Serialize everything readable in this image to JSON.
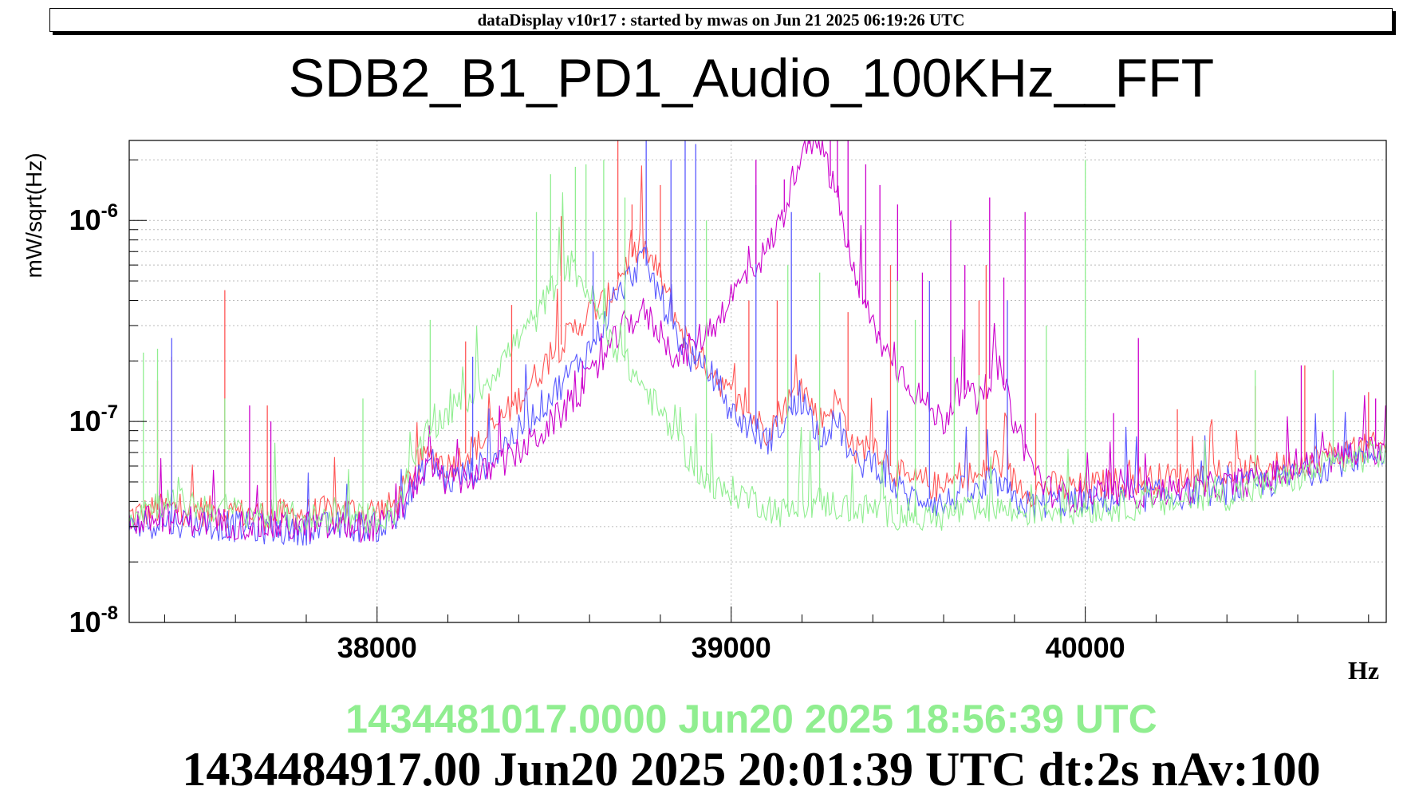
{
  "header": {
    "banner": "dataDisplay v10r17 : started by mwas on Jun 21 2025 06:19:26 UTC"
  },
  "footer": {
    "timestamp_reference": "1434481017.0000 Jun20 2025 18:56:39 UTC",
    "timestamp_current": "1434484917.00 Jun20 2025 20:01:39 UTC dt:2s nAv:100"
  },
  "colors": {
    "red": "#ff5555",
    "blue": "#5a5aff",
    "magenta": "#cc00cc",
    "green": "#90ee90"
  },
  "chart_data": {
    "type": "line",
    "title": "SDB2_B1_PD1_Audio_100KHz__FFT",
    "xlabel": "Hz",
    "ylabel": "mW/sqrt(Hz)",
    "xscale": "linear",
    "yscale": "log",
    "xlim": [
      37300,
      40850
    ],
    "ylim": [
      1e-08,
      2.5e-06
    ],
    "x_ticks": [
      38000,
      39000,
      40000
    ],
    "y_ticks": [
      {
        "value": 1e-06,
        "base": "10",
        "exp": "-6"
      },
      {
        "value": 1e-07,
        "base": "10",
        "exp": "-7"
      },
      {
        "value": 1e-08,
        "base": "10",
        "exp": "-8"
      }
    ],
    "grid": true,
    "series": [
      {
        "color": "#ff5555",
        "x": [
          37300,
          37400,
          37500,
          37600,
          37700,
          37800,
          37900,
          38000,
          38050,
          38100,
          38150,
          38200,
          38300,
          38400,
          38500,
          38600,
          38650,
          38700,
          38750,
          38800,
          38850,
          38900,
          38950,
          39000,
          39050,
          39100,
          39150,
          39200,
          39250,
          39300,
          39350,
          39400,
          39450,
          39500,
          39550,
          39600,
          39650,
          39700,
          39750,
          39800,
          39850,
          39900,
          39950,
          40000,
          40100,
          40200,
          40300,
          40400,
          40500,
          40600,
          40700,
          40850
        ],
        "y": [
          3.4e-08,
          3.7e-08,
          3.6e-08,
          3.5e-08,
          3.4e-08,
          3.5e-08,
          3.6e-08,
          3.6e-08,
          3.8e-08,
          5.5e-08,
          7e-08,
          6e-08,
          8e-08,
          1.3e-07,
          2.2e-07,
          3.5e-07,
          4e-07,
          6e-07,
          7.5e-07,
          5.2e-07,
          3.1e-07,
          2.1e-07,
          1.8e-07,
          1.3e-07,
          1.1e-07,
          9e-08,
          1.2e-07,
          1.5e-07,
          1e-07,
          1.3e-07,
          7e-08,
          8e-08,
          6e-08,
          5e-08,
          5e-08,
          4.5e-08,
          5.5e-08,
          5.2e-08,
          6.5e-08,
          5e-08,
          4.5e-08,
          4.8e-08,
          4.6e-08,
          4.7e-08,
          5e-08,
          5.2e-08,
          5.3e-08,
          5.5e-08,
          5.8e-08,
          6.2e-08,
          6.8e-08,
          7.6e-08
        ]
      },
      {
        "color": "#5a5aff",
        "x": [
          37300,
          37400,
          37500,
          37600,
          37700,
          37800,
          37900,
          38000,
          38050,
          38100,
          38150,
          38200,
          38300,
          38400,
          38500,
          38600,
          38650,
          38700,
          38750,
          38800,
          38850,
          38900,
          38950,
          39000,
          39050,
          39100,
          39150,
          39200,
          39250,
          39300,
          39350,
          39400,
          39450,
          39500,
          39550,
          39600,
          39650,
          39700,
          39750,
          39800,
          39850,
          39900,
          39950,
          40000,
          40100,
          40200,
          40300,
          40400,
          40500,
          40600,
          40700,
          40850
        ],
        "y": [
          3e-08,
          3.2e-08,
          3.1e-08,
          3e-08,
          2.9e-08,
          2.9e-08,
          3e-08,
          3e-08,
          3.2e-08,
          4.5e-08,
          6.5e-08,
          5e-08,
          6e-08,
          9e-08,
          1.4e-07,
          2.3e-07,
          3.3e-07,
          4.8e-07,
          6.5e-07,
          4.2e-07,
          2.6e-07,
          1.9e-07,
          1.7e-07,
          1.1e-07,
          9.5e-08,
          8e-08,
          1e-07,
          1.3e-07,
          8.5e-08,
          1e-07,
          6e-08,
          6.5e-08,
          5e-08,
          4.2e-08,
          4.2e-08,
          3.8e-08,
          4.5e-08,
          4.3e-08,
          5e-08,
          4e-08,
          3.8e-08,
          4e-08,
          3.9e-08,
          4e-08,
          4.1e-08,
          4.3e-08,
          4.4e-08,
          4.6e-08,
          4.9e-08,
          5.4e-08,
          6.2e-08,
          7.2e-08
        ]
      },
      {
        "color": "#cc00cc",
        "x": [
          37300,
          37400,
          37500,
          37600,
          37700,
          37800,
          37900,
          38000,
          38050,
          38100,
          38150,
          38200,
          38300,
          38400,
          38500,
          38600,
          38650,
          38700,
          38750,
          38800,
          38850,
          38900,
          38950,
          39000,
          39050,
          39100,
          39150,
          39200,
          39250,
          39300,
          39350,
          39400,
          39450,
          39500,
          39550,
          39600,
          39650,
          39700,
          39750,
          39800,
          39850,
          39900,
          39950,
          40000,
          40100,
          40200,
          40300,
          40400,
          40500,
          40600,
          40700,
          40850
        ],
        "y": [
          3.1e-08,
          3.3e-08,
          3.2e-08,
          3.1e-08,
          3e-08,
          3e-08,
          3e-08,
          3e-08,
          3.2e-08,
          4.8e-08,
          6e-08,
          5e-08,
          5.5e-08,
          7e-08,
          1e-07,
          1.6e-07,
          2.2e-07,
          3e-07,
          3.5e-07,
          2.8e-07,
          2e-07,
          2.5e-07,
          3e-07,
          4.2e-07,
          5.5e-07,
          7e-07,
          1.1e-06,
          2.4e-06,
          2.4e-06,
          1.3e-06,
          5e-07,
          3e-07,
          2e-07,
          1.6e-07,
          1.2e-07,
          1e-07,
          1.5e-07,
          1.2e-07,
          2e-07,
          1e-07,
          6e-08,
          4.5e-08,
          4.2e-08,
          4.3e-08,
          4.3e-08,
          4.5e-08,
          4.6e-08,
          4.8e-08,
          5.2e-08,
          5.8e-08,
          6.6e-08,
          7.5e-08
        ]
      },
      {
        "color": "#90ee90",
        "x": [
          37300,
          37400,
          37500,
          37600,
          37700,
          37800,
          37900,
          38000,
          38050,
          38100,
          38150,
          38200,
          38300,
          38400,
          38450,
          38500,
          38550,
          38600,
          38650,
          38700,
          38750,
          38800,
          38850,
          38900,
          38950,
          39000,
          39050,
          39100,
          39150,
          39200,
          39250,
          39300,
          39350,
          39400,
          39450,
          39500,
          39550,
          39600,
          39650,
          39700,
          39750,
          39800,
          39850,
          39900,
          39950,
          40000,
          40100,
          40200,
          40300,
          40400,
          40500,
          40600,
          40700,
          40850
        ],
        "y": [
          3.5e-08,
          4e-08,
          3.8e-08,
          3.6e-08,
          3.4e-08,
          3.3e-08,
          3.3e-08,
          3.3e-08,
          3.6e-08,
          6e-08,
          9e-08,
          1.1e-07,
          1.5e-07,
          2.6e-07,
          3.3e-07,
          4.8e-07,
          6e-07,
          4.3e-07,
          2.8e-07,
          2e-07,
          1.5e-07,
          1.1e-07,
          8e-08,
          6e-08,
          4.5e-08,
          4.5e-08,
          4.2e-08,
          3.8e-08,
          3.5e-08,
          3.8e-08,
          4e-08,
          3.8e-08,
          3.6e-08,
          3.7e-08,
          3.5e-08,
          3.4e-08,
          3.3e-08,
          3.4e-08,
          3.6e-08,
          3.5e-08,
          3.8e-08,
          3.5e-08,
          3.6e-08,
          3.7e-08,
          3.6e-08,
          3.7e-08,
          3.8e-08,
          3.9e-08,
          4.1e-08,
          4.3e-08,
          4.7e-08,
          5.3e-08,
          6.2e-08,
          7e-08
        ]
      }
    ],
    "spikes": [
      {
        "color": "#ff5555",
        "x": [
          37380,
          37420,
          37570,
          37690,
          38250,
          38380,
          38520,
          38680,
          38720,
          38800,
          38830,
          39050,
          39130,
          39330,
          39450,
          39700,
          39720,
          39860,
          40260,
          40480,
          40620,
          40800
        ],
        "y": [
          1.6e-07,
          2.1e-07,
          4.5e-07,
          1.2e-07,
          2.5e-07,
          3.8e-07,
          1.05e-06,
          2.5e-06,
          1.2e-06,
          1.5e-06,
          9e-07,
          4e-07,
          4e-07,
          3.5e-07,
          6e-07,
          4e-07,
          6e-07,
          1.1e-07,
          1.15e-07,
          1.5e-07,
          1.9e-07,
          1.4e-07
        ]
      },
      {
        "color": "#5a5aff",
        "x": [
          37420,
          38270,
          38610,
          38760,
          38830,
          38870,
          38900,
          39070,
          39170,
          39560,
          39780
        ],
        "y": [
          2.6e-07,
          2.1e-07,
          7e-07,
          2.5e-06,
          2e-06,
          2.5e-06,
          2.4e-06,
          1.5e-06,
          1.1e-06,
          5e-07,
          4e-07
        ]
      },
      {
        "color": "#cc00cc",
        "x": [
          37640,
          37700,
          38580,
          39070,
          39150,
          39220,
          39280,
          39300,
          39330,
          39380,
          39420,
          39470,
          39540,
          39620,
          39660,
          39730,
          39770,
          39830,
          40080,
          40150,
          40610,
          40820
        ],
        "y": [
          1.2e-07,
          1e-07,
          2e-07,
          2e-06,
          1.6e-06,
          2.5e-06,
          2.5e-06,
          2.5e-06,
          2.5e-06,
          1.9e-06,
          1.5e-06,
          1.2e-06,
          5.5e-07,
          1e-06,
          6e-07,
          1.3e-06,
          5.2e-07,
          1.1e-06,
          1.1e-07,
          2.6e-07,
          1.9e-07,
          1.3e-07
        ]
      },
      {
        "color": "#90ee90",
        "x": [
          37340,
          37380,
          37570,
          37960,
          38150,
          38450,
          38490,
          38560,
          38590,
          38640,
          38700,
          38930,
          39160,
          39250,
          39470,
          39520,
          39630,
          39700,
          39890,
          40000,
          40480,
          40700
        ],
        "y": [
          2.2e-07,
          2.3e-07,
          1.3e-07,
          1.3e-07,
          3.2e-07,
          1.1e-06,
          1.7e-06,
          1.85e-06,
          1.9e-06,
          2e-06,
          1.3e-06,
          1e-06,
          6e-07,
          5.5e-07,
          5e-07,
          3.2e-07,
          2.1e-07,
          1.7e-07,
          3e-07,
          2e-06,
          1.8e-07,
          1.8e-07
        ]
      }
    ]
  }
}
